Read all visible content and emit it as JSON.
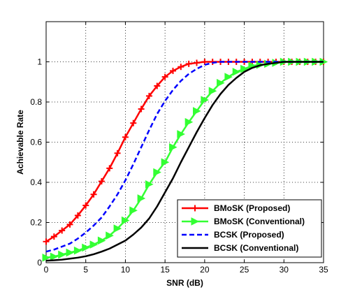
{
  "chart_data": {
    "type": "line",
    "xlabel": "SNR (dB)",
    "ylabel": "Achievable Rate",
    "xlim": [
      0,
      35
    ],
    "ylim": [
      0,
      1.2
    ],
    "xticks": [
      0,
      5,
      10,
      15,
      20,
      25,
      30,
      35
    ],
    "yticks": [
      0,
      0.2,
      0.4,
      0.6,
      0.8,
      1
    ],
    "grid": true,
    "legend_position": "bottom-right",
    "series": [
      {
        "name": "BMoSK (Proposed)",
        "color": "#ff0000",
        "style": "solid",
        "marker": "plus",
        "x": [
          0,
          1,
          2,
          3,
          4,
          5,
          6,
          7,
          8,
          9,
          10,
          11,
          12,
          13,
          14,
          15,
          16,
          17,
          18,
          19,
          20,
          21,
          22,
          23,
          24,
          25,
          26,
          27,
          28,
          29,
          30,
          31,
          32,
          33,
          34,
          35
        ],
        "y": [
          0.105,
          0.13,
          0.16,
          0.19,
          0.235,
          0.285,
          0.34,
          0.405,
          0.47,
          0.545,
          0.625,
          0.695,
          0.765,
          0.83,
          0.88,
          0.925,
          0.955,
          0.975,
          0.99,
          0.995,
          1,
          1,
          1,
          1,
          1,
          1,
          1,
          1,
          1,
          1,
          1,
          1,
          1,
          1,
          1,
          1
        ]
      },
      {
        "name": "BMoSK (Conventional)",
        "color": "#33ff33",
        "style": "solid",
        "marker": "triangle-right",
        "x": [
          0,
          1,
          2,
          3,
          4,
          5,
          6,
          7,
          8,
          9,
          10,
          11,
          12,
          13,
          14,
          15,
          16,
          17,
          18,
          19,
          20,
          21,
          22,
          23,
          24,
          25,
          26,
          27,
          28,
          29,
          30,
          31,
          32,
          33,
          34,
          35
        ],
        "y": [
          0.025,
          0.03,
          0.04,
          0.05,
          0.06,
          0.075,
          0.09,
          0.11,
          0.135,
          0.17,
          0.21,
          0.26,
          0.32,
          0.39,
          0.45,
          0.5,
          0.575,
          0.64,
          0.7,
          0.755,
          0.81,
          0.855,
          0.895,
          0.925,
          0.95,
          0.965,
          0.98,
          0.985,
          0.99,
          0.995,
          1,
          1,
          1,
          1,
          1,
          1
        ]
      },
      {
        "name": "BCSK (Proposed)",
        "color": "#0000ff",
        "style": "dashed",
        "marker": "none",
        "x": [
          0,
          1,
          2,
          3,
          4,
          5,
          6,
          7,
          8,
          9,
          10,
          11,
          12,
          13,
          14,
          15,
          16,
          17,
          18,
          19,
          20,
          21,
          22,
          23,
          24,
          25,
          26,
          27,
          28,
          29,
          30,
          31,
          32,
          33,
          34,
          35
        ],
        "y": [
          0.055,
          0.065,
          0.08,
          0.095,
          0.12,
          0.15,
          0.185,
          0.225,
          0.28,
          0.34,
          0.41,
          0.49,
          0.575,
          0.66,
          0.74,
          0.805,
          0.86,
          0.905,
          0.94,
          0.965,
          0.985,
          0.995,
          1,
          1,
          1,
          1,
          1,
          1,
          1,
          1,
          1,
          1,
          1,
          1,
          1,
          1
        ]
      },
      {
        "name": "BCSK (Conventional)",
        "color": "#000000",
        "style": "solid",
        "marker": "none",
        "x": [
          0,
          1,
          2,
          3,
          4,
          5,
          6,
          7,
          8,
          9,
          10,
          11,
          12,
          13,
          14,
          15,
          16,
          17,
          18,
          19,
          20,
          21,
          22,
          23,
          24,
          25,
          26,
          27,
          28,
          29,
          30,
          31,
          32,
          33,
          34,
          35
        ],
        "y": [
          0.01,
          0.012,
          0.015,
          0.02,
          0.025,
          0.032,
          0.042,
          0.055,
          0.07,
          0.09,
          0.11,
          0.14,
          0.175,
          0.22,
          0.28,
          0.35,
          0.42,
          0.5,
          0.575,
          0.65,
          0.72,
          0.785,
          0.84,
          0.885,
          0.92,
          0.95,
          0.97,
          0.983,
          0.99,
          0.995,
          1,
          1,
          1,
          1,
          1,
          1
        ]
      }
    ]
  }
}
